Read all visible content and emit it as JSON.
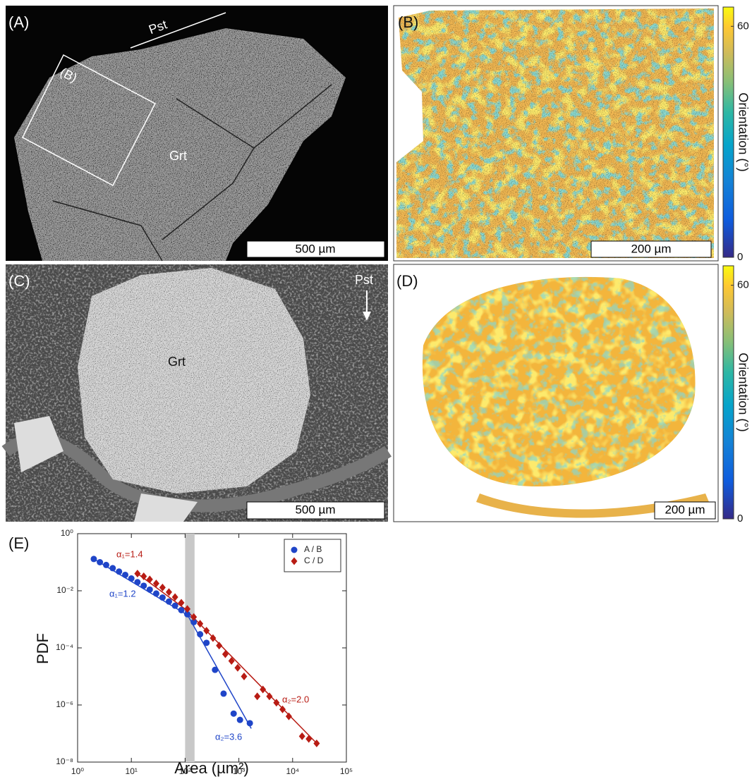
{
  "panels": {
    "A": {
      "label": "(A)",
      "texts": [
        "Pst",
        "(B)",
        "Grt"
      ],
      "scale_bar": "500 µm"
    },
    "B": {
      "label": "(B)",
      "scale_bar": "200 µm",
      "colorbar": {
        "label": "Orientation (°)",
        "lim": [
          0,
          65
        ],
        "ticks": [
          0,
          60
        ]
      }
    },
    "C": {
      "label": "(C)",
      "texts": [
        "Pst",
        "Grt"
      ],
      "scale_bar": "500 µm"
    },
    "D": {
      "label": "(D)",
      "scale_bar": "200 µm",
      "colorbar": {
        "label": "Orientation (°)",
        "lim": [
          0,
          65
        ],
        "ticks": [
          0,
          60
        ]
      }
    }
  },
  "chart_data": {
    "type": "scatter",
    "panel_label": "(E)",
    "x_label": "Area (µm²)",
    "y_label": "PDF",
    "log_x": true,
    "log_y": true,
    "xlim": [
      1,
      100000
    ],
    "ylim": [
      1e-08,
      1
    ],
    "xticks": [
      {
        "value": 1,
        "label": "10⁰"
      },
      {
        "value": 10,
        "label": "10¹"
      },
      {
        "value": 100,
        "label": "10²"
      },
      {
        "value": 1000,
        "label": "10³"
      },
      {
        "value": 10000,
        "label": "10⁴"
      },
      {
        "value": 100000,
        "label": "10⁵"
      }
    ],
    "yticks": [
      {
        "value": 1e-08,
        "label": "10⁻⁸"
      },
      {
        "value": 1e-06,
        "label": "10⁻⁶"
      },
      {
        "value": 0.0001,
        "label": "10⁻⁴"
      },
      {
        "value": 0.01,
        "label": "10⁻²"
      },
      {
        "value": 1,
        "label": "10⁰"
      }
    ],
    "legend": "upper right",
    "vspan": [
      100,
      150
    ],
    "vspan_color": "#c8c8c8",
    "series": [
      {
        "name": "A / B",
        "color": "#1f45c8",
        "marker": "circle",
        "x": [
          2,
          2.6,
          3.4,
          4.5,
          5.9,
          7.7,
          10,
          13,
          17,
          22,
          29,
          38,
          50,
          65,
          85,
          110,
          145,
          190,
          250,
          360,
          520,
          800,
          1050,
          1600
        ],
        "values": [
          0.13,
          0.1,
          0.08,
          0.062,
          0.047,
          0.036,
          0.027,
          0.02,
          0.015,
          0.011,
          0.008,
          0.0058,
          0.0042,
          0.003,
          0.0021,
          0.0015,
          0.0008,
          0.0003,
          0.00015,
          1.7e-05,
          2.5e-06,
          5e-07,
          3e-07,
          2.3e-07
        ]
      },
      {
        "name": "C / D",
        "color": "#b81c14",
        "marker": "diamond",
        "x": [
          13,
          17,
          22,
          29,
          38,
          50,
          65,
          85,
          110,
          145,
          190,
          250,
          330,
          430,
          560,
          730,
          950,
          1250,
          2200,
          2800,
          3700,
          5000,
          6500,
          8500,
          15000,
          20000,
          28000
        ],
        "values": [
          0.04,
          0.032,
          0.025,
          0.018,
          0.013,
          0.009,
          0.006,
          0.0038,
          0.0023,
          0.0012,
          0.0007,
          0.0004,
          0.00022,
          0.00012,
          6e-05,
          3.5e-05,
          2e-05,
          1e-05,
          2e-06,
          3.5e-06,
          2e-06,
          1.2e-06,
          7e-07,
          4e-07,
          8e-08,
          6.5e-08,
          4.5e-08
        ]
      }
    ],
    "fits": [
      {
        "color": "#1f45c8",
        "x": [
          2,
          150
        ],
        "values": [
          0.13,
          0.001
        ]
      },
      {
        "color": "#1f45c8",
        "x": [
          100,
          1700
        ],
        "values": [
          0.002,
          1.5e-07
        ]
      },
      {
        "color": "#b81c14",
        "x": [
          13,
          100
        ],
        "values": [
          0.04,
          0.0023
        ]
      },
      {
        "color": "#b81c14",
        "x": [
          100,
          30000
        ],
        "values": [
          0.0023,
          4e-08
        ]
      }
    ],
    "annotations": [
      {
        "text": "α₁=1.4",
        "color": "#b81c14"
      },
      {
        "text": "α₁=1.2",
        "color": "#1f45c8"
      },
      {
        "text": "α₂=2.0",
        "color": "#b81c14"
      },
      {
        "text": "α₂=3.6",
        "color": "#1f45c8"
      }
    ]
  }
}
